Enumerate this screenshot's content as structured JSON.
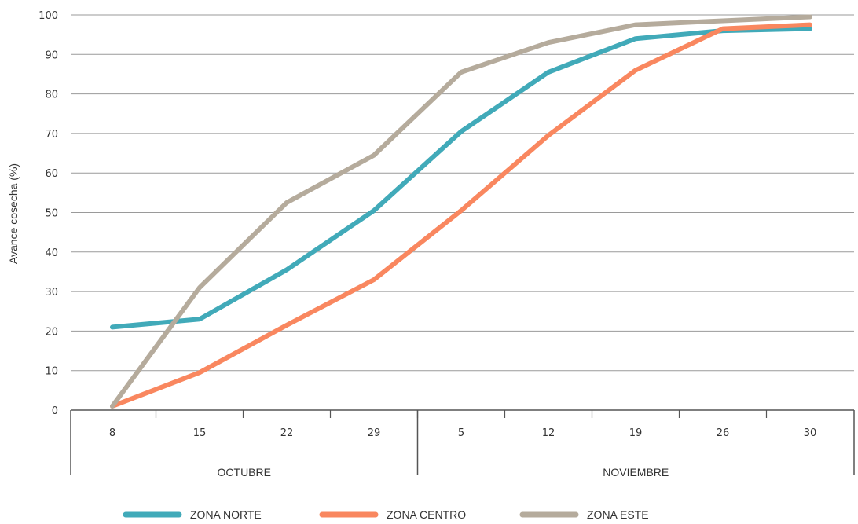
{
  "chart_data": {
    "type": "line",
    "title": "",
    "xlabel": "",
    "ylabel": "Avance cosecha (%)",
    "ylim": [
      0,
      100
    ],
    "yticks": [
      "0",
      "10",
      "20",
      "30",
      "40",
      "50",
      "60",
      "70",
      "80",
      "90",
      "100"
    ],
    "categories": [
      "8",
      "15",
      "22",
      "29",
      "5",
      "12",
      "19",
      "26",
      "30"
    ],
    "groups": [
      {
        "label": "OCTUBRE",
        "start": 0,
        "end": 3
      },
      {
        "label": "NOVIEMBRE",
        "start": 4,
        "end": 8
      }
    ],
    "grid": true,
    "legend_position": "bottom",
    "series": [
      {
        "name": "ZONA NORTE",
        "color": "#41aab9",
        "values": [
          21,
          23,
          35.5,
          50.5,
          70.5,
          85.5,
          94,
          96,
          96.5
        ]
      },
      {
        "name": "ZONA CENTRO",
        "color": "#f9875f",
        "values": [
          1,
          9.5,
          21.5,
          33,
          50.5,
          69.5,
          86,
          96.5,
          97.5
        ]
      },
      {
        "name": "ZONA ESTE",
        "color": "#b5ab9c",
        "values": [
          1,
          31,
          52.5,
          64.5,
          85.5,
          93,
          97.5,
          98.5,
          99.5
        ]
      }
    ]
  }
}
